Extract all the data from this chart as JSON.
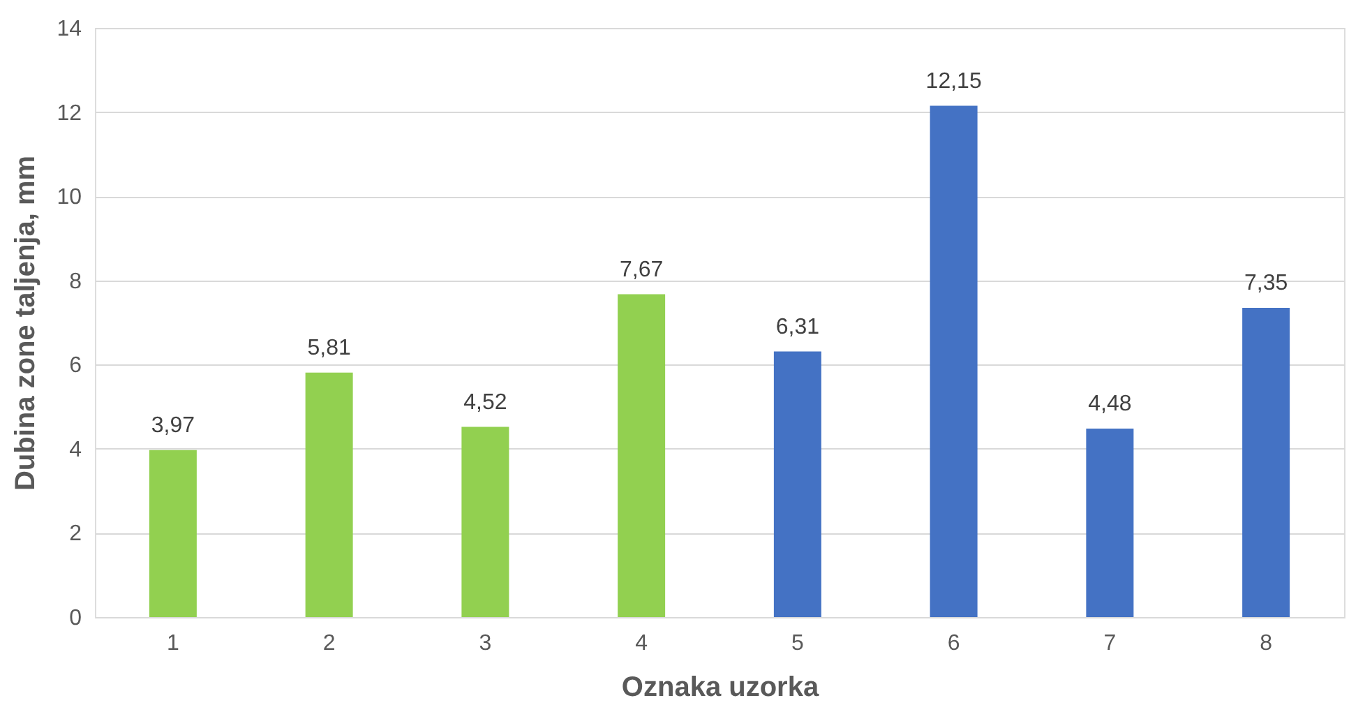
{
  "chart_data": {
    "type": "bar",
    "xlabel": "Oznaka uzorka",
    "ylabel": "Dubina zone taljenja, mm",
    "categories": [
      "1",
      "2",
      "3",
      "4",
      "5",
      "6",
      "7",
      "8"
    ],
    "values": [
      3.97,
      5.81,
      4.52,
      7.67,
      6.31,
      12.15,
      4.48,
      7.35
    ],
    "value_labels": [
      "3,97",
      "5,81",
      "4,52",
      "7,67",
      "6,31",
      "12,15",
      "4,48",
      "7,35"
    ],
    "colors": [
      "#92d050",
      "#92d050",
      "#92d050",
      "#92d050",
      "#4472c4",
      "#4472c4",
      "#4472c4",
      "#4472c4"
    ],
    "ylim": [
      0,
      14
    ],
    "yticks": [
      0,
      2,
      4,
      6,
      8,
      10,
      12,
      14
    ],
    "grid": "y"
  }
}
